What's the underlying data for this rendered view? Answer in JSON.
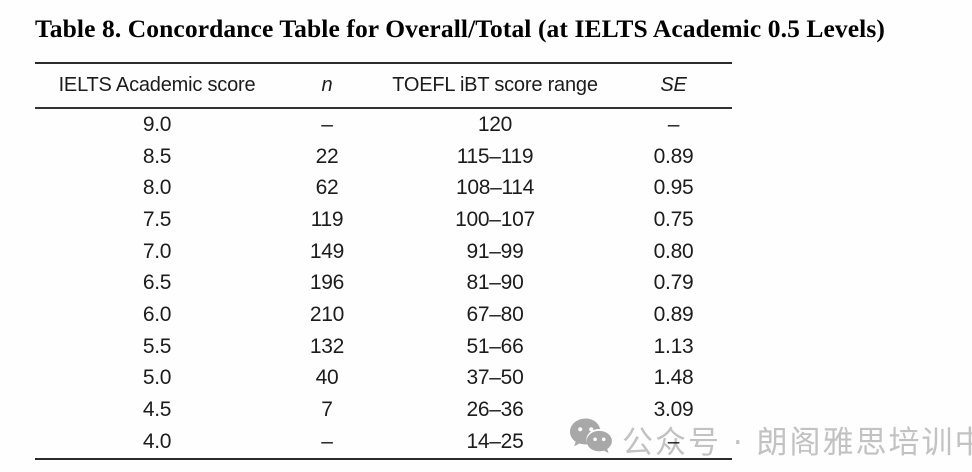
{
  "title": "Table 8. Concordance Table for Overall/Total (at IELTS Academic 0.5 Levels)",
  "table": {
    "columns": [
      {
        "label": "IELTS Academic score",
        "italic": false
      },
      {
        "label": "n",
        "italic": true
      },
      {
        "label": "TOEFL iBT score range",
        "italic": false
      },
      {
        "label": "SE",
        "italic": true
      }
    ],
    "rows": [
      {
        "ielts_score": "9.0",
        "n": "–",
        "toefl_range": "120",
        "se": "–"
      },
      {
        "ielts_score": "8.5",
        "n": "22",
        "toefl_range": "115–119",
        "se": "0.89"
      },
      {
        "ielts_score": "8.0",
        "n": "62",
        "toefl_range": "108–114",
        "se": "0.95"
      },
      {
        "ielts_score": "7.5",
        "n": "119",
        "toefl_range": "100–107",
        "se": "0.75"
      },
      {
        "ielts_score": "7.0",
        "n": "149",
        "toefl_range": "91–99",
        "se": "0.80"
      },
      {
        "ielts_score": "6.5",
        "n": "196",
        "toefl_range": "81–90",
        "se": "0.79"
      },
      {
        "ielts_score": "6.0",
        "n": "210",
        "toefl_range": "67–80",
        "se": "0.89"
      },
      {
        "ielts_score": "5.5",
        "n": "132",
        "toefl_range": "51–66",
        "se": "1.13"
      },
      {
        "ielts_score": "5.0",
        "n": "40",
        "toefl_range": "37–50",
        "se": "1.48"
      },
      {
        "ielts_score": "4.5",
        "n": "7",
        "toefl_range": "26–36",
        "se": "3.09"
      },
      {
        "ielts_score": "4.0",
        "n": "–",
        "toefl_range": "14–25",
        "se": "–"
      }
    ]
  },
  "chart_data": {
    "type": "table",
    "title": "Table 8. Concordance Table for Overall/Total (at IELTS Academic 0.5 Levels)",
    "columns": [
      "IELTS Academic score",
      "n",
      "TOEFL iBT score range",
      "SE"
    ],
    "rows": [
      [
        "9.0",
        "–",
        "120",
        "–"
      ],
      [
        "8.5",
        "22",
        "115–119",
        "0.89"
      ],
      [
        "8.0",
        "62",
        "108–114",
        "0.95"
      ],
      [
        "7.5",
        "119",
        "100–107",
        "0.75"
      ],
      [
        "7.0",
        "149",
        "91–99",
        "0.80"
      ],
      [
        "6.5",
        "196",
        "81–90",
        "0.79"
      ],
      [
        "6.0",
        "210",
        "67–80",
        "0.89"
      ],
      [
        "5.5",
        "132",
        "51–66",
        "1.13"
      ],
      [
        "5.0",
        "40",
        "37–50",
        "1.48"
      ],
      [
        "4.5",
        "7",
        "26–36",
        "3.09"
      ],
      [
        "4.0",
        "–",
        "14–25",
        "–"
      ]
    ]
  },
  "watermark": {
    "icon": "wechat-icon",
    "text": "公众号 · 朗阁雅思培训中心",
    "icon_color": "#a9a9a9",
    "text_color": "#c3c3c3"
  },
  "colors": {
    "background": "#fefefe",
    "text": "#1c1c1c",
    "rule": "#2b2b2b"
  }
}
